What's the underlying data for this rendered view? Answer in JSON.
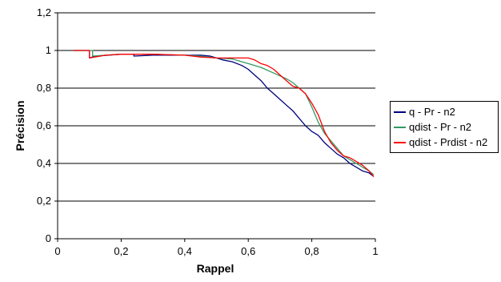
{
  "chart_data": {
    "type": "line",
    "title": "",
    "xlabel": "Rappel",
    "ylabel": "Précision",
    "xlim": [
      0,
      1
    ],
    "ylim": [
      0,
      1.2
    ],
    "x_ticks": [
      "0",
      "0,2",
      "0,4",
      "0,6",
      "0,8",
      "1"
    ],
    "y_ticks": [
      "0",
      "0,2",
      "0,4",
      "0,6",
      "0,8",
      "1",
      "1,2"
    ],
    "grid": "horizontal",
    "legend_position": "right",
    "series": [
      {
        "name": "q - Pr - n2",
        "color": "#000080",
        "points": [
          [
            0.05,
            1.0
          ],
          [
            0.1,
            1.0
          ],
          [
            0.1,
            0.96
          ],
          [
            0.12,
            0.97
          ],
          [
            0.2,
            0.98
          ],
          [
            0.24,
            0.98
          ],
          [
            0.24,
            0.97
          ],
          [
            0.3,
            0.975
          ],
          [
            0.35,
            0.975
          ],
          [
            0.4,
            0.975
          ],
          [
            0.45,
            0.975
          ],
          [
            0.48,
            0.97
          ],
          [
            0.5,
            0.96
          ],
          [
            0.52,
            0.95
          ],
          [
            0.55,
            0.94
          ],
          [
            0.58,
            0.92
          ],
          [
            0.6,
            0.9
          ],
          [
            0.62,
            0.87
          ],
          [
            0.64,
            0.84
          ],
          [
            0.66,
            0.8
          ],
          [
            0.68,
            0.77
          ],
          [
            0.7,
            0.74
          ],
          [
            0.72,
            0.71
          ],
          [
            0.74,
            0.68
          ],
          [
            0.76,
            0.64
          ],
          [
            0.78,
            0.6
          ],
          [
            0.8,
            0.57
          ],
          [
            0.82,
            0.55
          ],
          [
            0.84,
            0.51
          ],
          [
            0.86,
            0.48
          ],
          [
            0.88,
            0.45
          ],
          [
            0.9,
            0.43
          ],
          [
            0.92,
            0.4
          ],
          [
            0.94,
            0.38
          ],
          [
            0.96,
            0.36
          ],
          [
            0.98,
            0.35
          ],
          [
            0.995,
            0.33
          ]
        ]
      },
      {
        "name": "qdist - Pr - n2",
        "color": "#339966",
        "points": [
          [
            0.05,
            1.0
          ],
          [
            0.11,
            1.0
          ],
          [
            0.11,
            0.97
          ],
          [
            0.15,
            0.975
          ],
          [
            0.2,
            0.98
          ],
          [
            0.3,
            0.98
          ],
          [
            0.4,
            0.975
          ],
          [
            0.45,
            0.97
          ],
          [
            0.5,
            0.96
          ],
          [
            0.55,
            0.955
          ],
          [
            0.58,
            0.94
          ],
          [
            0.6,
            0.93
          ],
          [
            0.64,
            0.91
          ],
          [
            0.68,
            0.88
          ],
          [
            0.72,
            0.85
          ],
          [
            0.74,
            0.83
          ],
          [
            0.76,
            0.8
          ],
          [
            0.78,
            0.77
          ],
          [
            0.8,
            0.7
          ],
          [
            0.82,
            0.62
          ],
          [
            0.84,
            0.56
          ],
          [
            0.86,
            0.52
          ],
          [
            0.88,
            0.48
          ],
          [
            0.9,
            0.44
          ],
          [
            0.92,
            0.42
          ],
          [
            0.94,
            0.4
          ],
          [
            0.96,
            0.38
          ],
          [
            0.98,
            0.36
          ],
          [
            0.995,
            0.34
          ]
        ]
      },
      {
        "name": "qdist - Prdist - n2",
        "color": "#ff0000",
        "points": [
          [
            0.05,
            1.0
          ],
          [
            0.1,
            1.0
          ],
          [
            0.1,
            0.96
          ],
          [
            0.15,
            0.975
          ],
          [
            0.2,
            0.98
          ],
          [
            0.3,
            0.98
          ],
          [
            0.4,
            0.975
          ],
          [
            0.45,
            0.965
          ],
          [
            0.5,
            0.96
          ],
          [
            0.55,
            0.96
          ],
          [
            0.6,
            0.96
          ],
          [
            0.62,
            0.95
          ],
          [
            0.64,
            0.93
          ],
          [
            0.66,
            0.92
          ],
          [
            0.68,
            0.9
          ],
          [
            0.7,
            0.87
          ],
          [
            0.72,
            0.84
          ],
          [
            0.74,
            0.81
          ],
          [
            0.76,
            0.8
          ],
          [
            0.78,
            0.77
          ],
          [
            0.8,
            0.72
          ],
          [
            0.82,
            0.66
          ],
          [
            0.84,
            0.57
          ],
          [
            0.86,
            0.51
          ],
          [
            0.88,
            0.47
          ],
          [
            0.9,
            0.44
          ],
          [
            0.92,
            0.43
          ],
          [
            0.94,
            0.41
          ],
          [
            0.96,
            0.39
          ],
          [
            0.98,
            0.36
          ],
          [
            0.995,
            0.33
          ]
        ]
      }
    ]
  }
}
